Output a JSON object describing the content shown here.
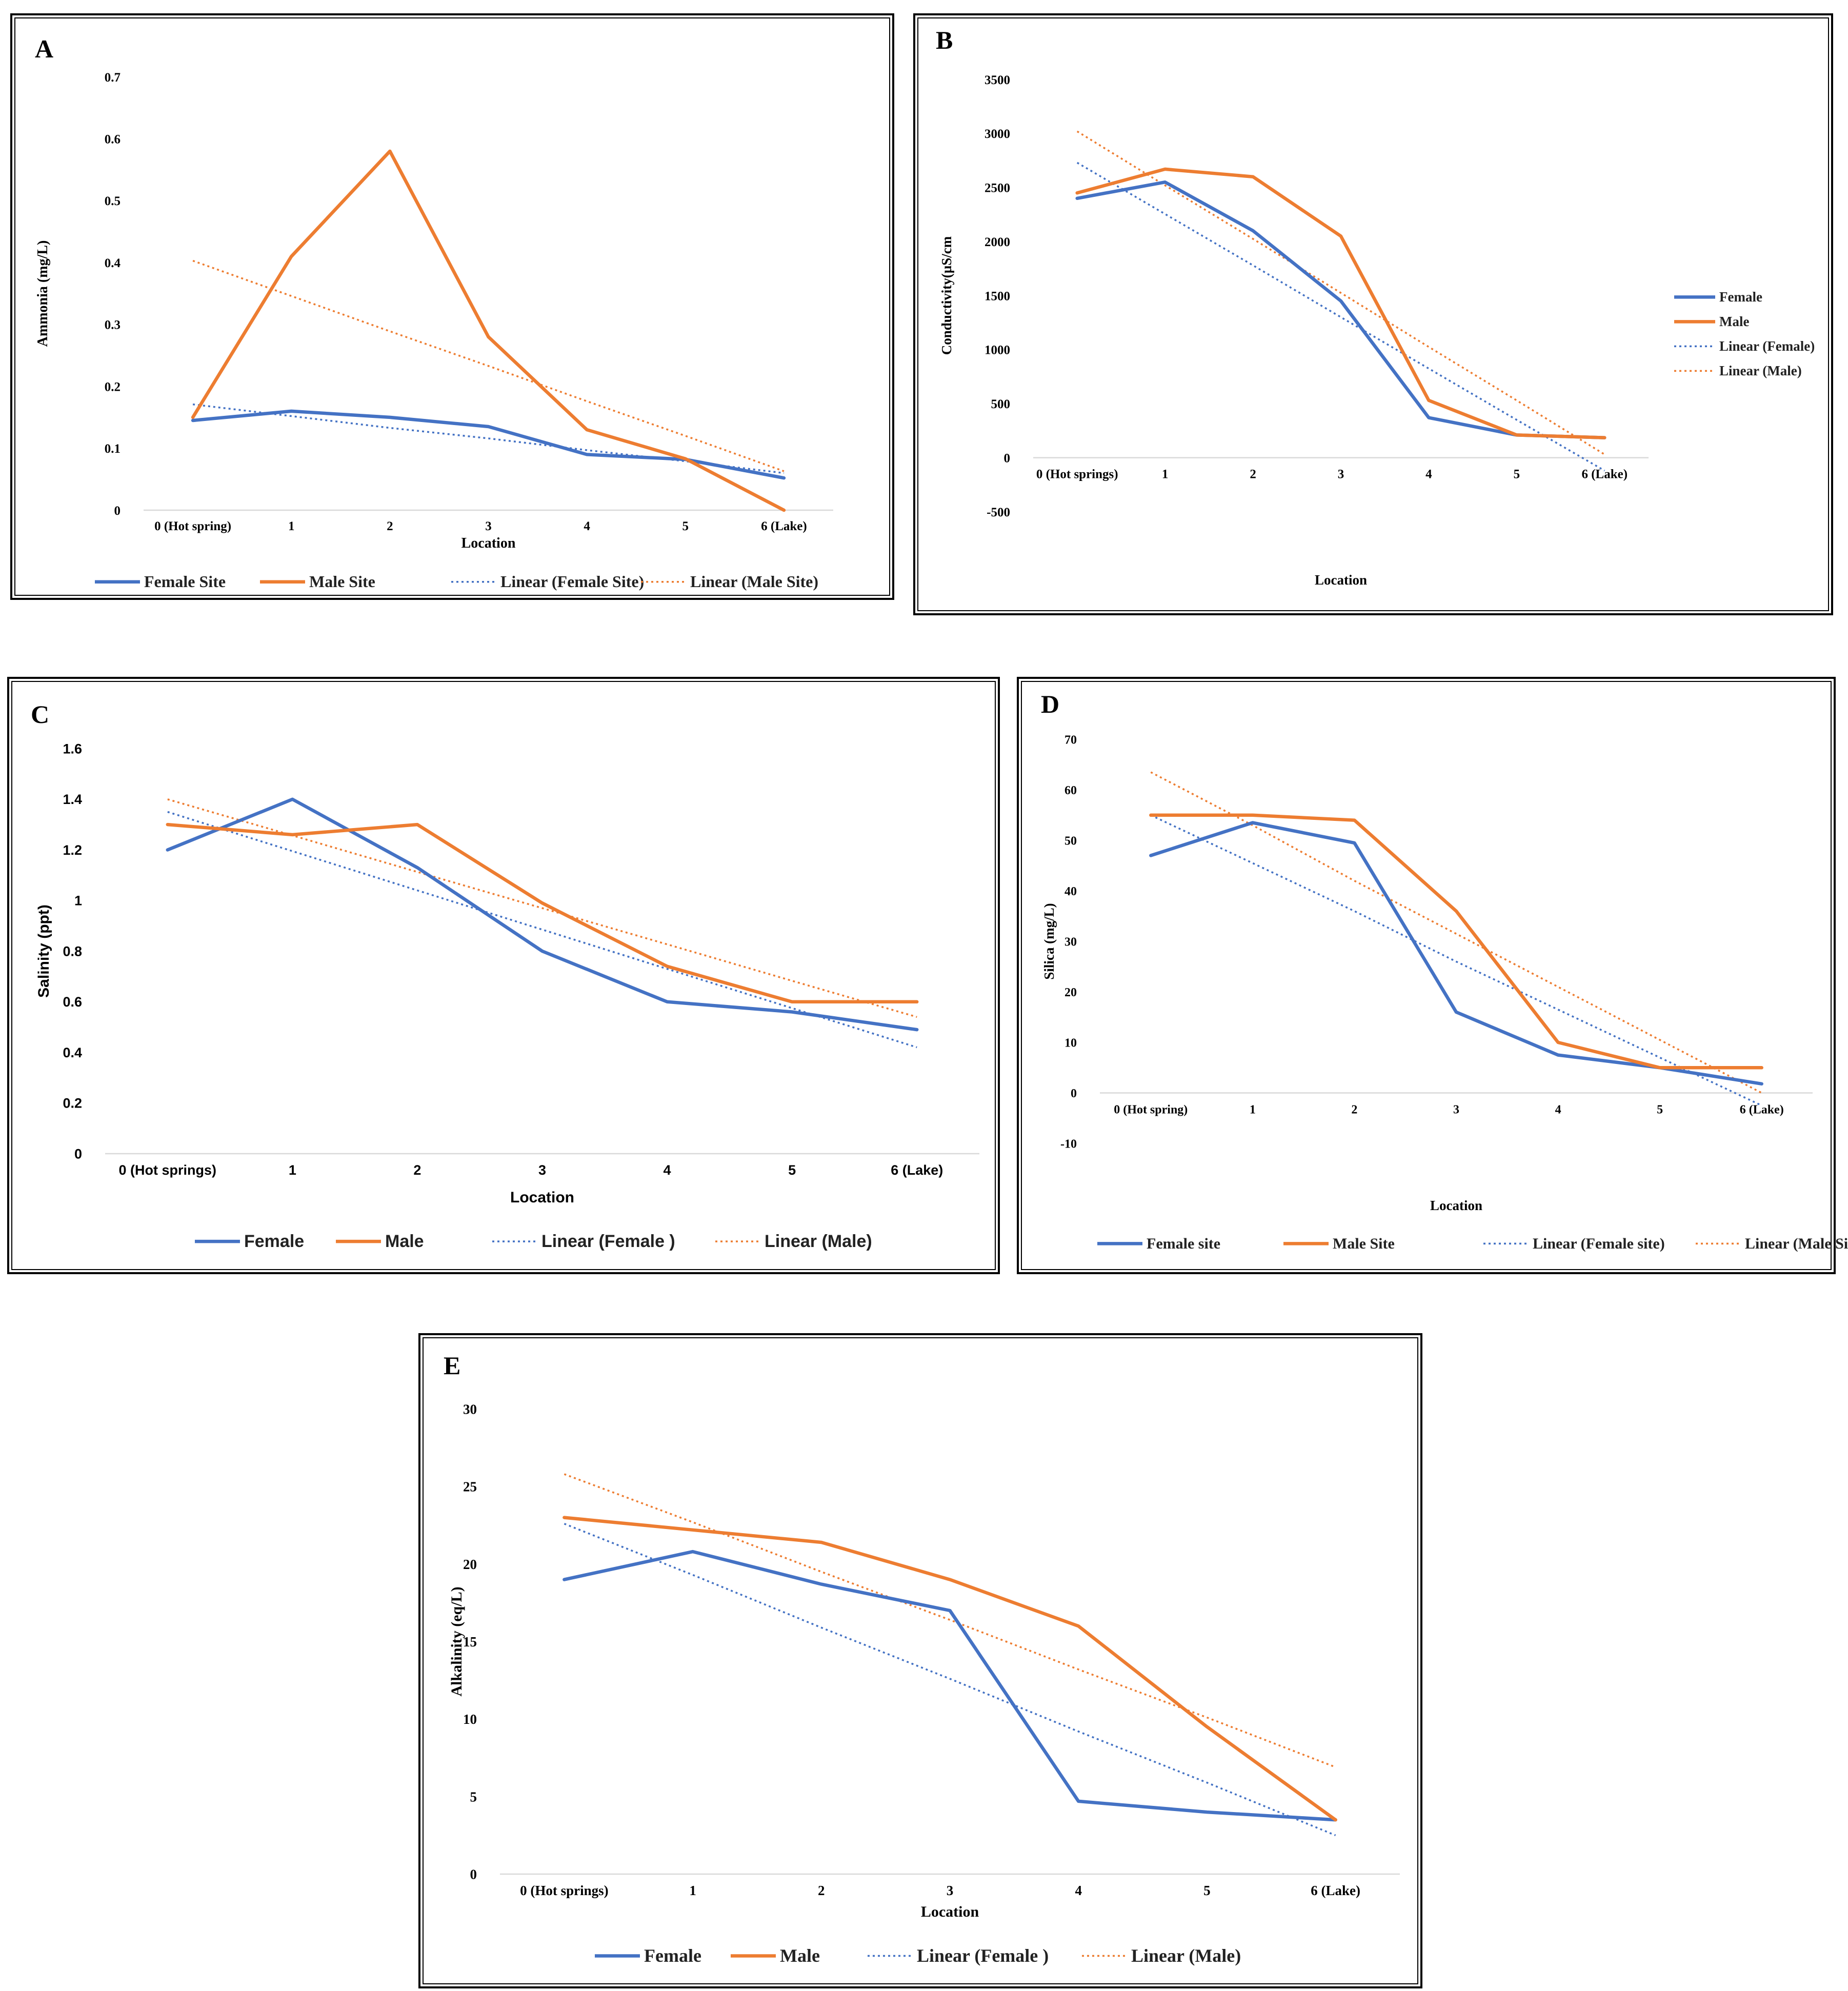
{
  "colors": {
    "female": "#4472C4",
    "male": "#ED7D31",
    "axis": "#D9D9D9",
    "text": "#000000"
  },
  "chart_data": [
    {
      "panel": "A",
      "type": "line",
      "categories": [
        "0 (Hot spring)",
        "1",
        "2",
        "3",
        "4",
        "5",
        "6 (Lake)"
      ],
      "xlabel": "Location",
      "ylabel": "Ammonia (mg/L)",
      "ylim": [
        0,
        0.7
      ],
      "yticks": [
        "0",
        "0.1",
        "0.2",
        "0.3",
        "0.4",
        "0.5",
        "0.6",
        "0.7"
      ],
      "legend_position": "bottom",
      "series": [
        {
          "name": "Female Site",
          "color": "#4472C4",
          "style": "solid",
          "values": [
            0.145,
            0.16,
            0.15,
            0.135,
            0.09,
            0.082,
            0.052
          ]
        },
        {
          "name": "Male Site",
          "color": "#ED7D31",
          "style": "solid",
          "values": [
            0.15,
            0.41,
            0.58,
            0.28,
            0.13,
            0.083,
            0.0
          ]
        },
        {
          "name": "Linear (Female Site)",
          "color": "#4472C4",
          "style": "dotted",
          "values": [
            0.171,
            0.152,
            0.133,
            0.116,
            0.097,
            0.079,
            0.06
          ]
        },
        {
          "name": "Linear (Male Site)",
          "color": "#ED7D31",
          "style": "dotted",
          "values": [
            0.403,
            0.346,
            0.289,
            0.233,
            0.176,
            0.12,
            0.063
          ]
        }
      ]
    },
    {
      "panel": "B",
      "type": "line",
      "categories": [
        "0 (Hot springs)",
        "1",
        "2",
        "3",
        "4",
        "5",
        "6 (Lake)"
      ],
      "xlabel": "Location",
      "ylabel": "Conductivity(µS/cm",
      "ylim": [
        -500,
        3500
      ],
      "yticks": [
        "-500",
        "0",
        "500",
        "1000",
        "1500",
        "2000",
        "2500",
        "3000",
        "3500"
      ],
      "legend_position": "right",
      "series": [
        {
          "name": "Female",
          "color": "#4472C4",
          "style": "solid",
          "values": [
            2400,
            2550,
            2100,
            1450,
            370,
            210,
            185
          ]
        },
        {
          "name": "Male",
          "color": "#ED7D31",
          "style": "solid",
          "values": [
            2450,
            2670,
            2600,
            2050,
            530,
            210,
            185
          ]
        },
        {
          "name": "Linear (Female)",
          "color": "#4472C4",
          "style": "dotted",
          "values": [
            2730,
            2255,
            1780,
            1300,
            825,
            350,
            -120
          ]
        },
        {
          "name": "Linear (Male)",
          "color": "#ED7D31",
          "style": "dotted",
          "values": [
            3020,
            2520,
            2025,
            1525,
            1025,
            530,
            30
          ]
        }
      ]
    },
    {
      "panel": "C",
      "type": "line",
      "categories": [
        "0 (Hot springs)",
        "1",
        "2",
        "3",
        "4",
        "5",
        "6 (Lake)"
      ],
      "xlabel": "Location",
      "ylabel": "Salinity (ppt)",
      "ylim": [
        0,
        1.6
      ],
      "yticks": [
        "0",
        "0.2",
        "0.4",
        "0.6",
        "0.8",
        "1",
        "1.2",
        "1.4",
        "1.6"
      ],
      "legend_position": "bottom",
      "series": [
        {
          "name": "Female",
          "color": "#4472C4",
          "style": "solid",
          "values": [
            1.2,
            1.4,
            1.13,
            0.8,
            0.6,
            0.56,
            0.49
          ]
        },
        {
          "name": "Male",
          "color": "#ED7D31",
          "style": "solid",
          "values": [
            1.3,
            1.26,
            1.3,
            0.99,
            0.74,
            0.6,
            0.6
          ]
        },
        {
          "name": "Linear (Female )",
          "color": "#4472C4",
          "style": "dotted",
          "values": [
            1.35,
            1.195,
            1.04,
            0.885,
            0.73,
            0.575,
            0.42
          ]
        },
        {
          "name": "Linear (Male)",
          "color": "#ED7D31",
          "style": "dotted",
          "values": [
            1.4,
            1.257,
            1.113,
            0.97,
            0.827,
            0.683,
            0.54
          ]
        }
      ]
    },
    {
      "panel": "D",
      "type": "line",
      "categories": [
        "0 (Hot spring)",
        "1",
        "2",
        "3",
        "4",
        "5",
        "6 (Lake)"
      ],
      "xlabel": "Location",
      "ylabel": "Silica (mg/L)",
      "ylim": [
        -10,
        70
      ],
      "yticks": [
        "-10",
        "0",
        "10",
        "20",
        "30",
        "40",
        "50",
        "60",
        "70"
      ],
      "legend_position": "bottom",
      "series": [
        {
          "name": "Female site",
          "color": "#4472C4",
          "style": "solid",
          "values": [
            47,
            53.5,
            49.5,
            16,
            7.5,
            5,
            1.8
          ]
        },
        {
          "name": "Male Site",
          "color": "#ED7D31",
          "style": "solid",
          "values": [
            55,
            55,
            54,
            36,
            10,
            5,
            5
          ]
        },
        {
          "name": "Linear (Female site)",
          "color": "#4472C4",
          "style": "dotted",
          "values": [
            55,
            45.5,
            36,
            26,
            16.5,
            7,
            -2.5
          ]
        },
        {
          "name": "Linear (Male Site)",
          "color": "#ED7D31",
          "style": "dotted",
          "values": [
            63.5,
            53,
            42,
            31.5,
            21,
            10.5,
            0
          ]
        }
      ]
    },
    {
      "panel": "E",
      "type": "line",
      "categories": [
        "0 (Hot springs)",
        "1",
        "2",
        "3",
        "4",
        "5",
        "6 (Lake)"
      ],
      "xlabel": "Location",
      "ylabel": "Alkalinity (eq/L)",
      "ylim": [
        0,
        30
      ],
      "yticks": [
        "0",
        "5",
        "10",
        "15",
        "20",
        "25",
        "30"
      ],
      "legend_position": "bottom",
      "series": [
        {
          "name": "Female",
          "color": "#4472C4",
          "style": "solid",
          "values": [
            19,
            20.8,
            18.7,
            17,
            4.7,
            4.0,
            3.5
          ]
        },
        {
          "name": "Male",
          "color": "#ED7D31",
          "style": "solid",
          "values": [
            23,
            22.2,
            21.4,
            19,
            16,
            9.5,
            3.5
          ]
        },
        {
          "name": "Linear (Female )",
          "color": "#4472C4",
          "style": "dotted",
          "values": [
            22.6,
            19.3,
            15.9,
            12.6,
            9.2,
            5.9,
            2.5
          ]
        },
        {
          "name": "Linear (Male)",
          "color": "#ED7D31",
          "style": "dotted",
          "values": [
            25.8,
            22.7,
            19.5,
            16.4,
            13.2,
            10.1,
            6.9
          ]
        }
      ]
    }
  ]
}
